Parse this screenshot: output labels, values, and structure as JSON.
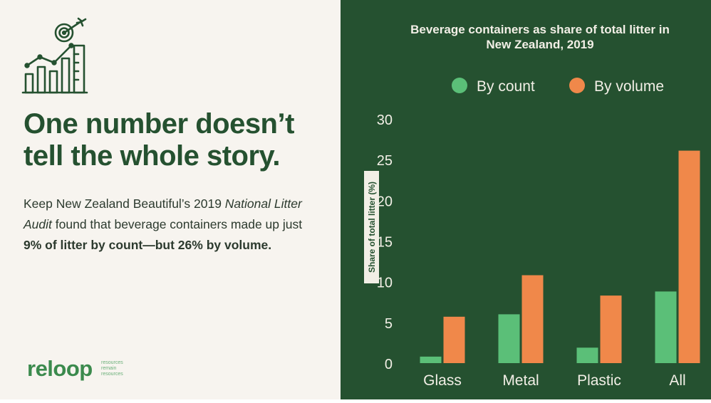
{
  "left_panel": {
    "headline_lines": [
      "One number doesn’t",
      "tell the whole story."
    ],
    "body": {
      "part1": "Keep New Zealand Beautiful’s 2019 ",
      "italic": "National Litter Audit",
      "part2": " found that beverage containers made up just ",
      "bold": "9% of litter by count—but 26% by volume."
    },
    "logo": {
      "word": "reloop",
      "tagline": [
        "resources",
        "remain",
        "resources"
      ]
    }
  },
  "colors": {
    "background_left": "#f7f4ef",
    "background_right": "#255130",
    "by_count": "#5bbf78",
    "by_volume": "#f0884a",
    "headline": "#255130"
  },
  "chart_data": {
    "type": "bar",
    "title": "Beverage containers as share of total litter in New Zealand, 2019",
    "title_lines": [
      "Beverage containers as share of total litter in",
      "New Zealand, 2019"
    ],
    "categories": [
      "Glass",
      "Metal",
      "Plastic",
      "All"
    ],
    "series": [
      {
        "name": "By count",
        "values": [
          0.8,
          6.0,
          1.9,
          8.8
        ]
      },
      {
        "name": "By volume",
        "values": [
          5.7,
          10.8,
          8.3,
          26.1
        ]
      }
    ],
    "ylabel": "Share of total litter (%)",
    "xlabel": "",
    "ylim": [
      0,
      30
    ],
    "yticks": [
      0,
      5,
      10,
      15,
      20,
      25,
      30
    ],
    "legend": "top",
    "grid": false
  }
}
